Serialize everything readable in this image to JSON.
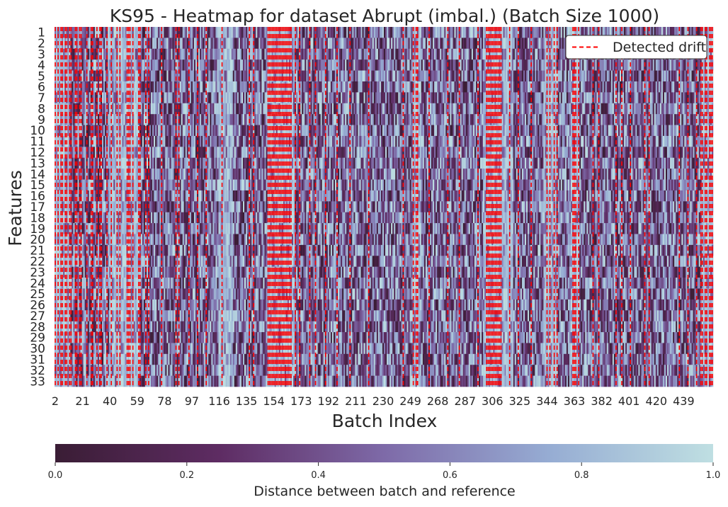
{
  "chart_data": {
    "type": "heatmap",
    "title": "KS95 - Heatmap for dataset Abrupt (imbal.) (Batch Size 1000)",
    "xlabel": "Batch Index",
    "ylabel": "Features",
    "x_tick_labels": [
      "2",
      "21",
      "40",
      "59",
      "78",
      "97",
      "116",
      "135",
      "154",
      "173",
      "192",
      "211",
      "230",
      "249",
      "268",
      "287",
      "306",
      "325",
      "344",
      "363",
      "382",
      "401",
      "420",
      "439"
    ],
    "y_tick_labels": [
      "1",
      "2",
      "3",
      "4",
      "5",
      "6",
      "7",
      "8",
      "9",
      "10",
      "11",
      "12",
      "13",
      "14",
      "15",
      "16",
      "17",
      "18",
      "19",
      "20",
      "21",
      "22",
      "23",
      "24",
      "25",
      "26",
      "27",
      "28",
      "29",
      "30",
      "31",
      "32",
      "33"
    ],
    "x_range": [
      2,
      459
    ],
    "n_features": 33,
    "value_range": [
      0,
      1
    ],
    "colormap": [
      "#3a1d35",
      "#5e2c63",
      "#7e6aa8",
      "#96acd3",
      "#bfdfe2"
    ],
    "colorbar": {
      "label": "Distance between batch and reference",
      "tick_labels": [
        "0.0",
        "0.2",
        "0.4",
        "0.6",
        "0.8",
        "1.0"
      ],
      "orientation": "horizontal"
    },
    "legend": {
      "entries": [
        {
          "label": "Detected drift",
          "color": "#ff0000",
          "style": "dashed"
        }
      ],
      "position": "top-right"
    },
    "detected_drift_batches": [
      2,
      4,
      6,
      7,
      9,
      10,
      12,
      13,
      16,
      17,
      19,
      20,
      24,
      27,
      28,
      31,
      33,
      34,
      38,
      41,
      45,
      47,
      52,
      53,
      54,
      56,
      60,
      61,
      65,
      67,
      76,
      86,
      88,
      95,
      101,
      107,
      118,
      137,
      140,
      150,
      151,
      152,
      153,
      154,
      155,
      156,
      157,
      158,
      159,
      160,
      161,
      162,
      163,
      164,
      165,
      166,
      169,
      172,
      179,
      183,
      190,
      198,
      207,
      220,
      244,
      251,
      253,
      254,
      262,
      275,
      283,
      296,
      302,
      303,
      304,
      305,
      306,
      307,
      308,
      309,
      310,
      311,
      312,
      318,
      324,
      333,
      344,
      346,
      349,
      351,
      362,
      363,
      364,
      366,
      376,
      380,
      392,
      396,
      402,
      412,
      415,
      436,
      442,
      448,
      451,
      452,
      454,
      455,
      457,
      458,
      459
    ],
    "high_distance_ranges": [
      [
        2,
        12
      ],
      [
        40,
        60
      ],
      [
        116,
        125
      ],
      [
        150,
        168
      ],
      [
        251,
        256
      ],
      [
        300,
        320
      ],
      [
        342,
        350
      ],
      [
        360,
        366
      ],
      [
        452,
        459
      ]
    ],
    "grid": false
  }
}
